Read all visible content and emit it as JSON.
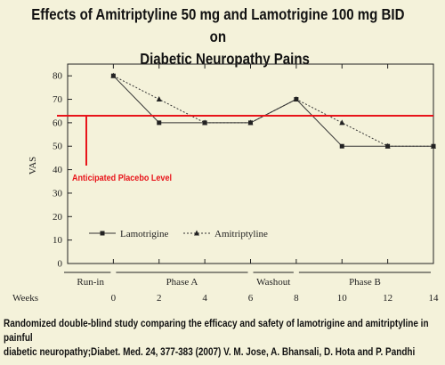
{
  "title": {
    "line1": "Effects of Amitriptyline 50 mg and Lamotrigine 100 mg BID on",
    "line2": "Diabetic Neuropathy Pains"
  },
  "caption": {
    "line1": "Randomized double-blind study comparing the efficacy and safety of lamotrigine and amitriptyline in painful",
    "line2": "diabetic neuropathy;Diabet. Med. 24, 377-383 (2007) V. M. Jose, A. Bhansali, D. Hota and P. Pandhi"
  },
  "chart_data": {
    "type": "line",
    "ylabel": "VAS",
    "xlabel": "Weeks",
    "ylim": [
      0,
      85
    ],
    "yticks": [
      0,
      10,
      20,
      30,
      40,
      50,
      60,
      70,
      80
    ],
    "xlim": [
      -2,
      14
    ],
    "xticks": [
      0,
      2,
      4,
      6,
      8,
      10,
      12,
      14
    ],
    "grid": false,
    "legend": "bottom-left",
    "series": [
      {
        "name": "Lamotrigine",
        "style": "solid",
        "marker": "square",
        "x": [
          0,
          2,
          4,
          6,
          8,
          10,
          12,
          14
        ],
        "values": [
          80,
          60,
          60,
          60,
          70,
          50,
          50,
          50
        ]
      },
      {
        "name": "Amitriptyline",
        "style": "dotted",
        "marker": "triangle",
        "x": [
          0,
          2,
          4,
          6,
          8,
          10,
          12,
          14
        ],
        "values": [
          80,
          70,
          60,
          60,
          70,
          60,
          50,
          50
        ]
      }
    ],
    "reference_line": {
      "value": 63,
      "label": "Anticipated Placebo Level",
      "color": "#e8141a"
    },
    "phases": [
      {
        "label": "Run-in",
        "start": -2,
        "end": 0
      },
      {
        "label": "Phase A",
        "start": 0,
        "end": 6
      },
      {
        "label": "Washout",
        "start": 6,
        "end": 8
      },
      {
        "label": "Phase B",
        "start": 8,
        "end": 14
      }
    ]
  }
}
